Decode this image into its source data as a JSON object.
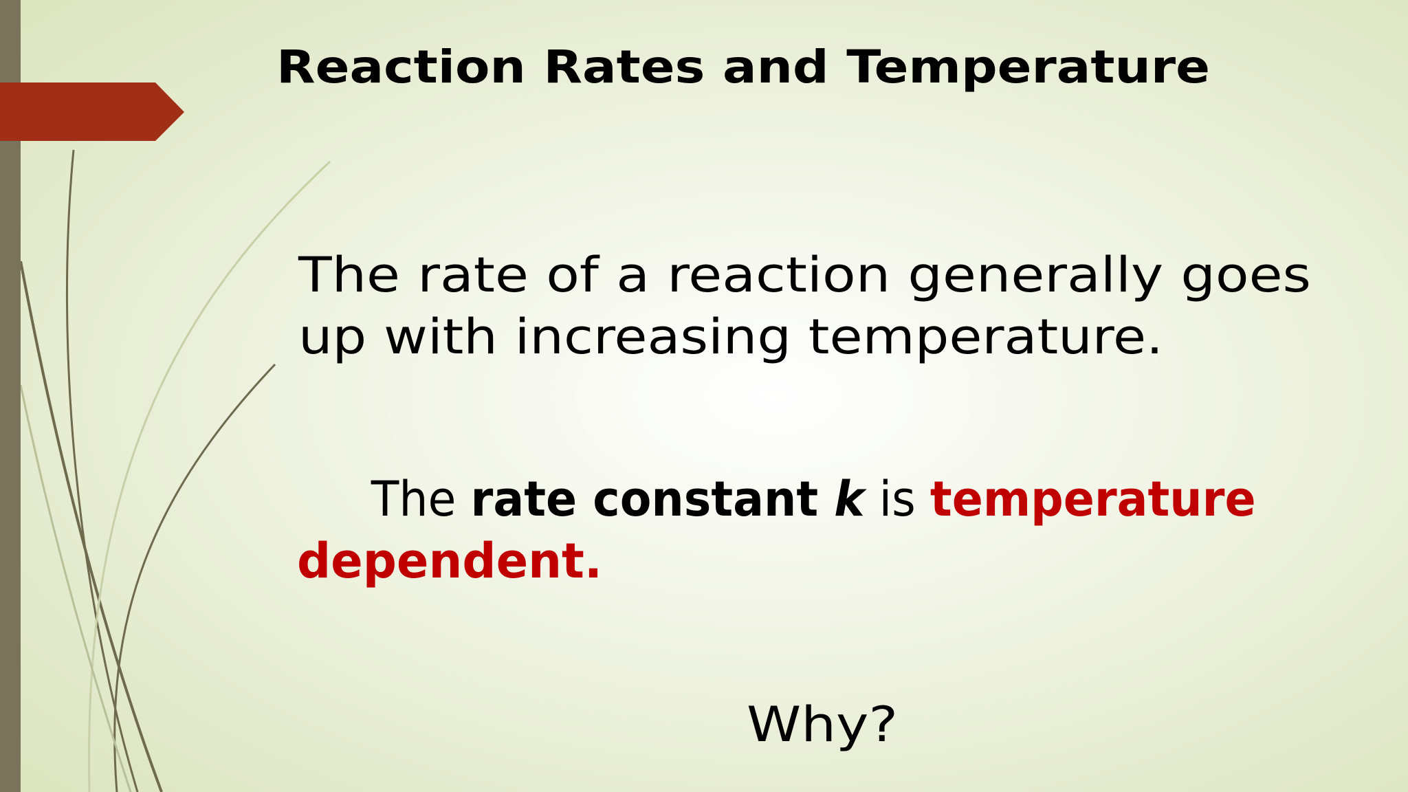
{
  "slide": {
    "title": "Reaction Rates and Temperature",
    "paragraph_1": {
      "lines": [
        "The rate of a reaction generally goes",
        "up with increasing temperature."
      ]
    },
    "paragraph_2": {
      "runs": [
        "The ",
        "rate constant ",
        "k",
        " is ",
        "temperature",
        "dependent."
      ]
    },
    "question": "Why?"
  }
}
